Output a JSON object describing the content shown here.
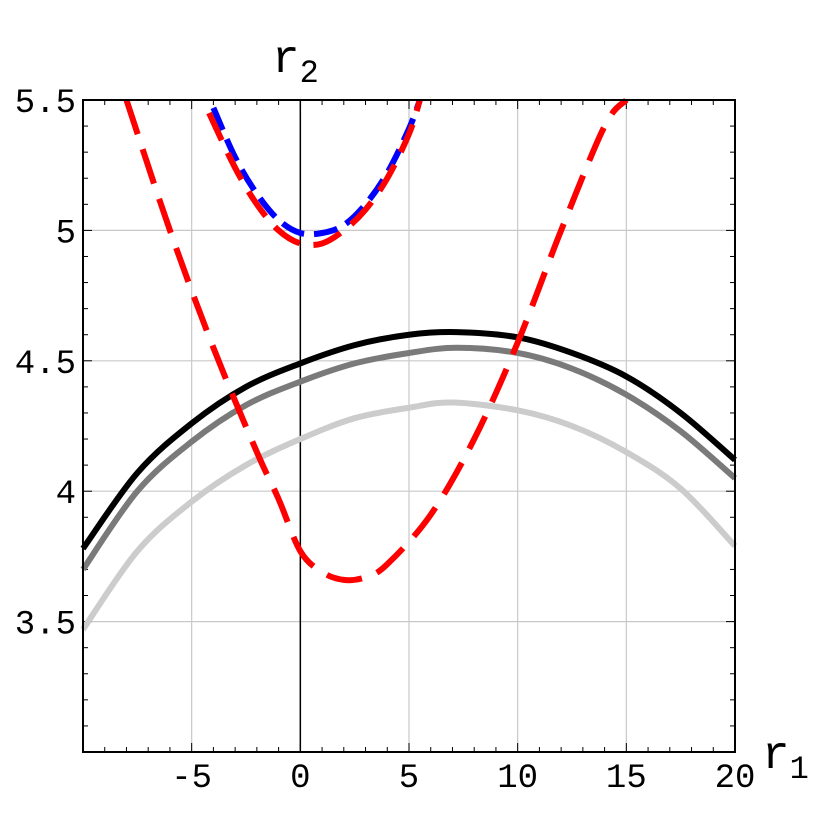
{
  "chart_data": {
    "type": "line",
    "title": "",
    "xlabel": {
      "main": "r",
      "sub": "1"
    },
    "ylabel": {
      "main": "r",
      "sub": "2"
    },
    "xlim": [
      -10,
      20
    ],
    "ylim": [
      3,
      5.5
    ],
    "grid": true,
    "x_grid": [
      -5,
      0,
      5,
      10,
      15,
      20
    ],
    "y_grid": [
      3.5,
      4,
      4.5,
      5,
      5.5
    ],
    "x_ticks": [
      {
        "value": -5,
        "label": "-5"
      },
      {
        "value": 0,
        "label": "0"
      },
      {
        "value": 5,
        "label": "5"
      },
      {
        "value": 10,
        "label": "10"
      },
      {
        "value": 15,
        "label": "15"
      },
      {
        "value": 20,
        "label": "20"
      }
    ],
    "y_ticks": [
      {
        "value": 3.5,
        "label": "3.5"
      },
      {
        "value": 4,
        "label": "4"
      },
      {
        "value": 4.5,
        "label": "4.5"
      },
      {
        "value": 5,
        "label": "5"
      },
      {
        "value": 5.5,
        "label": "5.5"
      }
    ],
    "x_minor_step": 1,
    "y_minor_step": 0.1,
    "vertical_line_x": 0,
    "series": [
      {
        "style": "solid",
        "color": "#000000",
        "dash": "",
        "x": [
          -10,
          -7.5,
          -5,
          -2.5,
          0,
          2.5,
          5,
          7.2,
          10,
          12.5,
          15,
          17.5,
          20
        ],
        "y": [
          3.78,
          4.07,
          4.26,
          4.4,
          4.49,
          4.56,
          4.6,
          4.61,
          4.59,
          4.53,
          4.44,
          4.3,
          4.12
        ]
      },
      {
        "style": "solid",
        "color": "#7a7a7a",
        "dash": "",
        "x": [
          -10,
          -7.5,
          -5,
          -2.5,
          0,
          2.5,
          5,
          7.2,
          10,
          12.5,
          15,
          17.5,
          20
        ],
        "y": [
          3.7,
          4.0,
          4.19,
          4.33,
          4.42,
          4.49,
          4.53,
          4.55,
          4.53,
          4.47,
          4.37,
          4.23,
          4.05
        ]
      },
      {
        "style": "solid",
        "color": "#cccccc",
        "dash": "",
        "x": [
          -10,
          -7.5,
          -5,
          -2.5,
          0,
          2.5,
          5,
          7,
          10,
          12.5,
          15,
          17.5,
          20
        ],
        "y": [
          3.47,
          3.77,
          3.96,
          4.1,
          4.2,
          4.28,
          4.32,
          4.34,
          4.31,
          4.25,
          4.15,
          4.01,
          3.79
        ]
      },
      {
        "style": "dashed",
        "color": "#ff0000",
        "dash": "36 16",
        "x": [
          -8,
          -6,
          -4,
          -2,
          -1,
          0,
          1,
          2,
          3,
          4,
          6,
          8,
          10,
          12,
          14,
          15
        ],
        "y": [
          5.5,
          5.0,
          4.55,
          4.15,
          3.97,
          3.77,
          3.69,
          3.66,
          3.67,
          3.72,
          3.91,
          4.2,
          4.57,
          5.0,
          5.4,
          5.5
        ]
      },
      {
        "style": "dashed",
        "color": "#0000ff",
        "dash": "24 10",
        "x": [
          -4,
          -3,
          -2,
          -1,
          0,
          1,
          2,
          3,
          4,
          5,
          5.5
        ],
        "y": [
          5.47,
          5.28,
          5.14,
          5.04,
          4.99,
          4.99,
          5.02,
          5.1,
          5.22,
          5.39,
          5.5
        ]
      },
      {
        "style": "dashed",
        "color": "#ff0000",
        "dash": "30 14",
        "x": [
          -4.2,
          -3,
          -2,
          -1,
          0,
          1,
          2,
          3,
          4,
          5,
          5.5
        ],
        "y": [
          5.45,
          5.24,
          5.1,
          5.0,
          4.95,
          4.95,
          5.0,
          5.08,
          5.2,
          5.37,
          5.5
        ]
      }
    ]
  }
}
